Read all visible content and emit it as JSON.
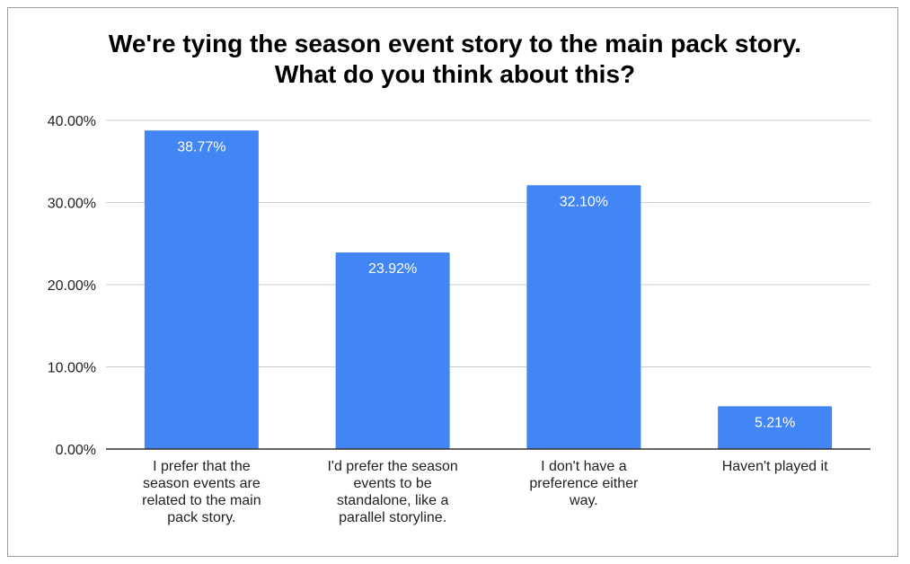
{
  "chart_data": {
    "type": "bar",
    "title_lines": [
      "We're tying the season event story to the main pack story.",
      "What do you think about this?"
    ],
    "categories": [
      "I prefer that the season events are related to the main pack story.",
      "I'd prefer the season events to be standalone, like a parallel storyline.",
      "I don't have a preference either way.",
      "Haven't played it"
    ],
    "category_lines": [
      [
        "I prefer that the",
        "season events are",
        "related to the main",
        "pack story."
      ],
      [
        "I'd prefer the season",
        "events to be",
        "standalone, like a",
        "parallel storyline."
      ],
      [
        "I don't have a",
        "preference either",
        "way."
      ],
      [
        "Haven't played it"
      ]
    ],
    "values": [
      38.77,
      23.92,
      32.1,
      5.21
    ],
    "data_labels": [
      "38.77%",
      "23.92%",
      "32.10%",
      "5.21%"
    ],
    "y_ticks": [
      "0.00%",
      "10.00%",
      "20.00%",
      "30.00%",
      "40.00%"
    ],
    "ylim": [
      0,
      40
    ],
    "grid": true,
    "legend": "none",
    "bar_color": "#4285f4",
    "gridline_color": "#cccccc",
    "axis_color": "#333333"
  }
}
